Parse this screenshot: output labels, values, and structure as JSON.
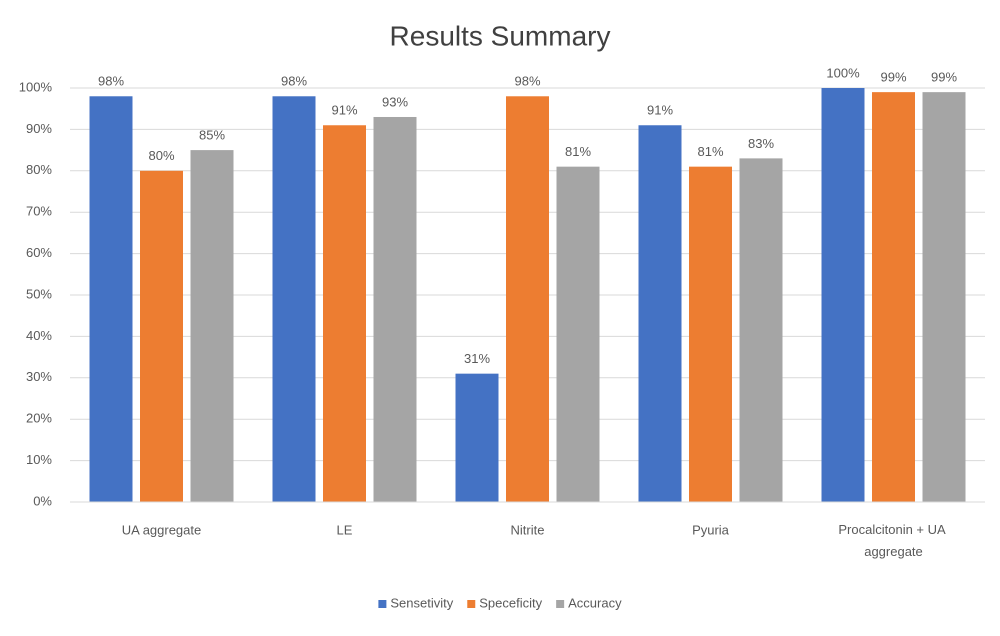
{
  "chart_data": {
    "type": "bar",
    "title": "Results Summary",
    "categories": [
      "UA aggregate",
      "LE",
      "Nitrite",
      "Pyuria",
      "Procalcitonin + UA aggregate"
    ],
    "series": [
      {
        "name": "Sensetivity",
        "color": "#4472c4",
        "values": [
          98,
          98,
          31,
          91,
          100
        ],
        "value_labels": [
          "98%",
          "98%",
          "31%",
          "91%",
          "100%"
        ]
      },
      {
        "name": "Speceficity",
        "color": "#ed7d31",
        "values": [
          80,
          91,
          98,
          81,
          99
        ],
        "value_labels": [
          "80%",
          "91%",
          "98%",
          "81%",
          "99%"
        ]
      },
      {
        "name": "Accuracy",
        "color": "#a5a5a5",
        "values": [
          85,
          93,
          81,
          83,
          99
        ],
        "value_labels": [
          "85%",
          "93%",
          "81%",
          "83%",
          "99%"
        ]
      }
    ],
    "ylim": [
      0,
      100
    ],
    "yticks": [
      {
        "value": 0,
        "label": "0%"
      },
      {
        "value": 10,
        "label": "10%"
      },
      {
        "value": 20,
        "label": "20%"
      },
      {
        "value": 30,
        "label": "30%"
      },
      {
        "value": 40,
        "label": "40%"
      },
      {
        "value": 50,
        "label": "50%"
      },
      {
        "value": 60,
        "label": "60%"
      },
      {
        "value": 70,
        "label": "70%"
      },
      {
        "value": 80,
        "label": "80%"
      },
      {
        "value": 90,
        "label": "90%"
      },
      {
        "value": 100,
        "label": "100%"
      }
    ],
    "grid": true,
    "legend": "bottom"
  }
}
